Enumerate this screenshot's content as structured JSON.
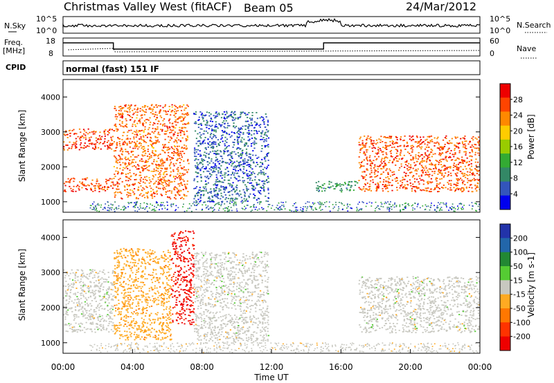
{
  "header": {
    "title": "Christmas Valley West (fitACF)",
    "beam": "Beam 05",
    "date": "24/Mar/2012"
  },
  "noise_panel": {
    "left_label": "N.Sky",
    "right_label": "N.Search",
    "left_ticks": [
      "10^5",
      "10^0"
    ],
    "right_ticks": [
      "10^5",
      "10^0"
    ]
  },
  "freq_panel": {
    "left_label_line1": "Freq.",
    "left_label_line2": "[MHz]",
    "left_ticks": [
      "18",
      "8"
    ],
    "right_label": "Nave",
    "right_ticks": [
      "60",
      "0"
    ]
  },
  "cpid": {
    "label": "CPID",
    "value": "normal (fast) 151 IF"
  },
  "chart_data": [
    {
      "type": "heatmap",
      "name": "power",
      "ylabel": "Slant Range [km]",
      "yticks": [
        "4000",
        "3000",
        "2000",
        "1000"
      ],
      "colorbar_label": "Power [dB]",
      "colorbar_ticks": [
        "28",
        "24",
        "20",
        "16",
        "12",
        "8",
        "4"
      ],
      "colorbar_range": [
        0,
        32
      ],
      "colors": [
        "#0000ee",
        "#3355bb",
        "#338866",
        "#33aa33",
        "#99cc00",
        "#ffcc00",
        "#ff8800",
        "#ff4400",
        "#ee0000"
      ],
      "echo_regions": [
        {
          "t0": 0.0,
          "t1": 2.9,
          "r0": 2500,
          "r1": 3100,
          "power": 27
        },
        {
          "t0": 0.0,
          "t1": 2.9,
          "r0": 1300,
          "r1": 1700,
          "power": 27
        },
        {
          "t0": 2.9,
          "t1": 7.2,
          "r0": 1100,
          "r1": 3800,
          "power": 25
        },
        {
          "t0": 7.5,
          "t1": 11.8,
          "r0": 1000,
          "r1": 3600,
          "power": 6
        },
        {
          "t0": 14.5,
          "t1": 17.0,
          "r0": 1300,
          "r1": 1600,
          "power": 10
        },
        {
          "t0": 17.0,
          "t1": 24.0,
          "r0": 1300,
          "r1": 2900,
          "power": 26
        }
      ]
    },
    {
      "type": "heatmap",
      "name": "velocity",
      "ylabel": "Slant Range [km]",
      "yticks": [
        "4000",
        "3000",
        "2000",
        "1000"
      ],
      "colorbar_label": "Velocity [m s-1]",
      "colorbar_ticks": [
        "200",
        "100",
        "50",
        "15",
        "-15",
        "-50",
        "-100",
        "-200"
      ],
      "colorbar_range": [
        -250,
        250
      ],
      "colors": [
        "#2233aa",
        "#2266aa",
        "#228833",
        "#55cc33",
        "#c8c8c0",
        "#ffaa22",
        "#ff7700",
        "#ff3300",
        "#ee0000"
      ],
      "echo_regions": [
        {
          "t0": 0.0,
          "t1": 2.9,
          "r0": 1300,
          "r1": 3100,
          "velocity": 0
        },
        {
          "t0": 2.9,
          "t1": 6.2,
          "r0": 1100,
          "r1": 3700,
          "velocity": -60
        },
        {
          "t0": 6.2,
          "t1": 7.5,
          "r0": 1500,
          "r1": 4200,
          "velocity": -210
        },
        {
          "t0": 7.5,
          "t1": 11.8,
          "r0": 1000,
          "r1": 3600,
          "velocity": 0
        },
        {
          "t0": 17.0,
          "t1": 24.0,
          "r0": 1300,
          "r1": 2900,
          "velocity": 0
        }
      ]
    }
  ],
  "xaxis": {
    "label": "Time UT",
    "ticks": [
      "00:00",
      "04:00",
      "08:00",
      "12:00",
      "16:00",
      "20:00",
      "00:00"
    ],
    "range": [
      0,
      24
    ]
  },
  "yaxis_range": [
    700,
    4500
  ]
}
